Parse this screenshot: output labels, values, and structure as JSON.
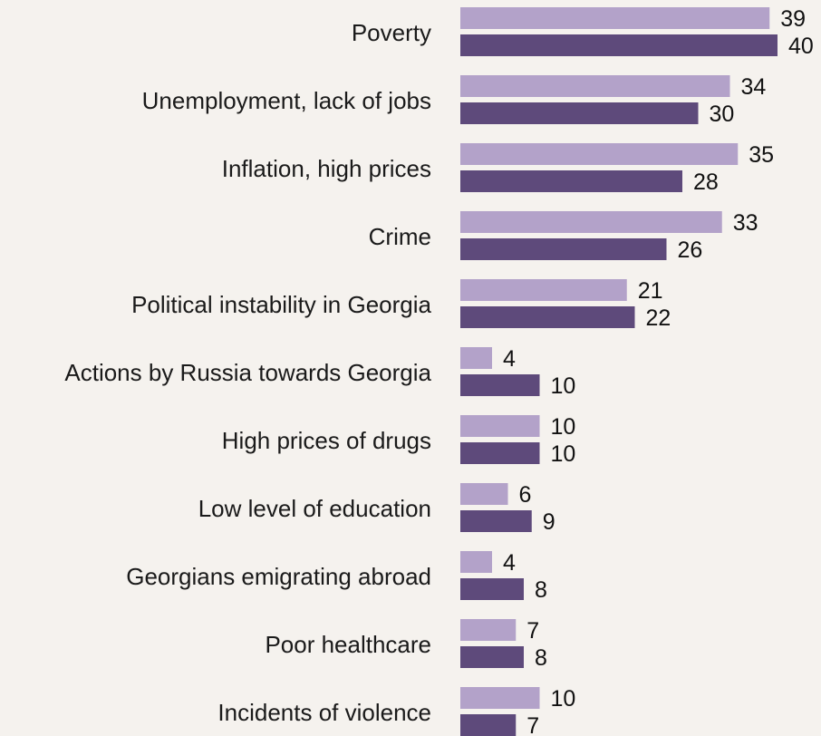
{
  "chart_data": {
    "type": "bar",
    "orientation": "horizontal",
    "categories": [
      "Poverty",
      "Unemployment, lack of jobs",
      "Inflation, high prices",
      "Crime",
      "Political instability in Georgia",
      "Actions by Russia towards Georgia",
      "High prices of drugs",
      "Low level of education",
      "Georgians emigrating abroad",
      "Poor healthcare",
      "Incidents of violence"
    ],
    "series": [
      {
        "color": "#b3a2c9",
        "values": [
          39,
          34,
          35,
          33,
          21,
          4,
          10,
          6,
          4,
          7,
          10
        ]
      },
      {
        "color": "#5e4a7b",
        "values": [
          40,
          30,
          28,
          26,
          22,
          10,
          10,
          9,
          8,
          8,
          7
        ]
      }
    ],
    "title": "",
    "xlabel": "",
    "ylabel": "",
    "xlim": [
      0,
      40
    ],
    "grid": false,
    "legend": "none",
    "data_labels": true
  }
}
